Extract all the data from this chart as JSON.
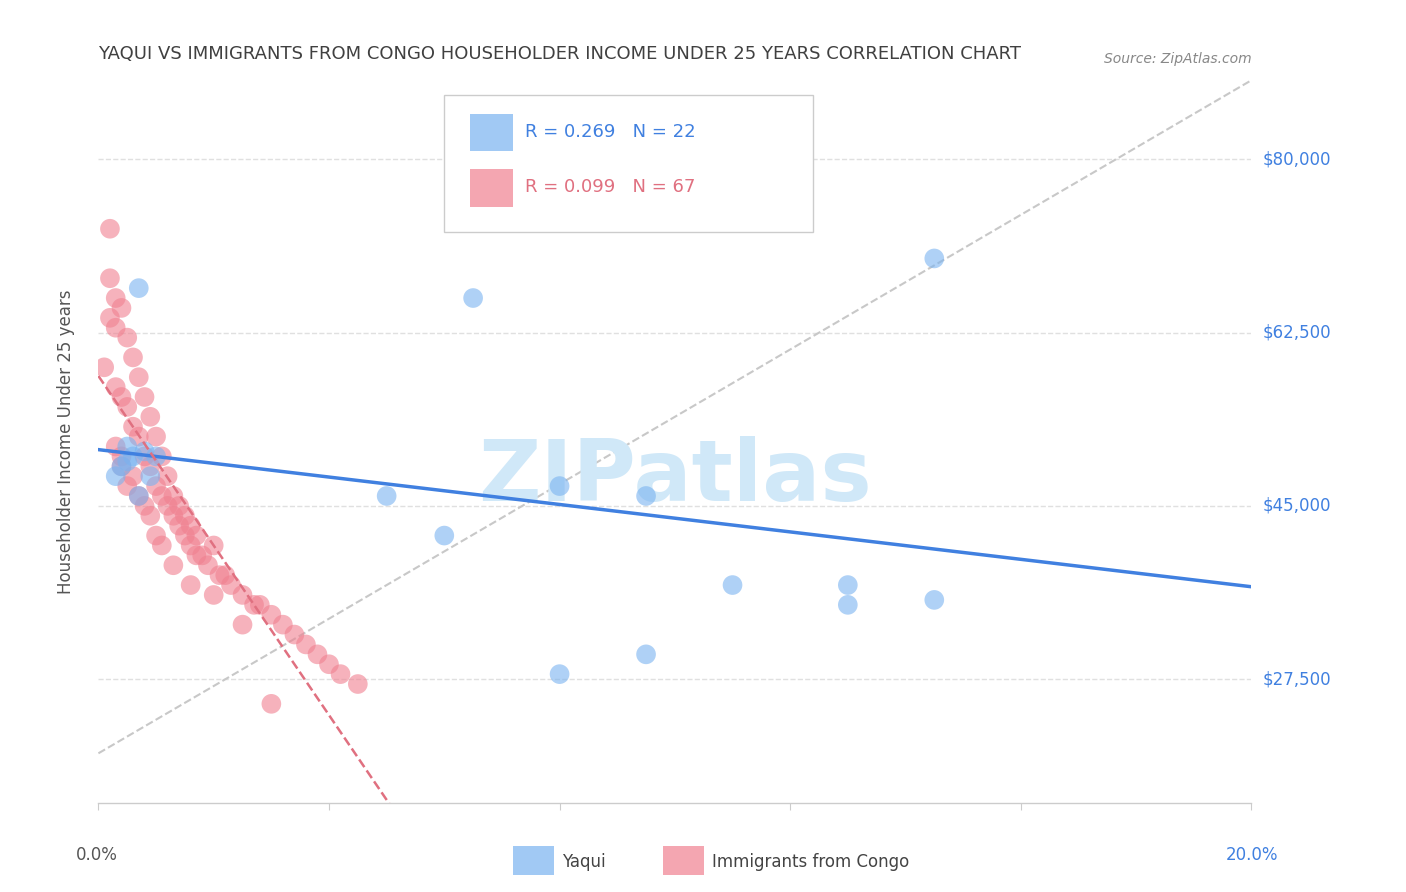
{
  "title": "YAQUI VS IMMIGRANTS FROM CONGO HOUSEHOLDER INCOME UNDER 25 YEARS CORRELATION CHART",
  "source": "Source: ZipAtlas.com",
  "ylabel": "Householder Income Under 25 years",
  "y_labels": [
    "$27,500",
    "$45,000",
    "$62,500",
    "$80,000"
  ],
  "y_values": [
    27500,
    45000,
    62500,
    80000
  ],
  "xlim": [
    0.0,
    0.2
  ],
  "ylim": [
    15000,
    88000
  ],
  "yaqui_color": "#7ab3f0",
  "congo_color": "#f08090",
  "yaqui_line_color": "#4080e0",
  "congo_line_color": "#e07080",
  "diagonal_line_color": "#c8c8c8",
  "background_color": "#ffffff",
  "grid_color": "#e0e0e0",
  "title_color": "#404040",
  "axis_label_color": "#4080e0",
  "watermark": "ZIPatlas",
  "watermark_color": "#d0e8f8",
  "yaqui_scatter_x": [
    0.005,
    0.007,
    0.003,
    0.004,
    0.006,
    0.005,
    0.008,
    0.009,
    0.01,
    0.007,
    0.05,
    0.06,
    0.065,
    0.08,
    0.095,
    0.11,
    0.13,
    0.095,
    0.08,
    0.145,
    0.13,
    0.145
  ],
  "yaqui_scatter_y": [
    51000,
    67000,
    48000,
    49000,
    50000,
    49500,
    50500,
    48000,
    50000,
    46000,
    46000,
    42000,
    66000,
    47000,
    46000,
    37000,
    35000,
    30000,
    28000,
    35500,
    37000,
    70000
  ],
  "congo_scatter_x": [
    0.001,
    0.002,
    0.002,
    0.003,
    0.003,
    0.004,
    0.004,
    0.005,
    0.005,
    0.006,
    0.006,
    0.007,
    0.007,
    0.008,
    0.008,
    0.009,
    0.009,
    0.01,
    0.01,
    0.011,
    0.011,
    0.012,
    0.012,
    0.013,
    0.013,
    0.014,
    0.014,
    0.015,
    0.015,
    0.016,
    0.016,
    0.017,
    0.017,
    0.018,
    0.019,
    0.02,
    0.021,
    0.022,
    0.023,
    0.025,
    0.027,
    0.028,
    0.03,
    0.032,
    0.034,
    0.036,
    0.038,
    0.04,
    0.042,
    0.045,
    0.002,
    0.003,
    0.004,
    0.005,
    0.003,
    0.004,
    0.006,
    0.007,
    0.008,
    0.009,
    0.01,
    0.011,
    0.013,
    0.016,
    0.02,
    0.025,
    0.03
  ],
  "congo_scatter_y": [
    59000,
    64000,
    73000,
    57000,
    63000,
    56000,
    65000,
    55000,
    62000,
    53000,
    60000,
    52000,
    58000,
    50000,
    56000,
    49000,
    54000,
    47000,
    52000,
    46000,
    50000,
    45000,
    48000,
    44000,
    46000,
    43000,
    45000,
    42000,
    44000,
    41000,
    43000,
    40000,
    42000,
    40000,
    39000,
    41000,
    38000,
    38000,
    37000,
    36000,
    35000,
    35000,
    34000,
    33000,
    32000,
    31000,
    30000,
    29000,
    28000,
    27000,
    68000,
    66000,
    49000,
    47000,
    51000,
    50000,
    48000,
    46000,
    45000,
    44000,
    42000,
    41000,
    39000,
    37000,
    36000,
    33000,
    25000
  ]
}
